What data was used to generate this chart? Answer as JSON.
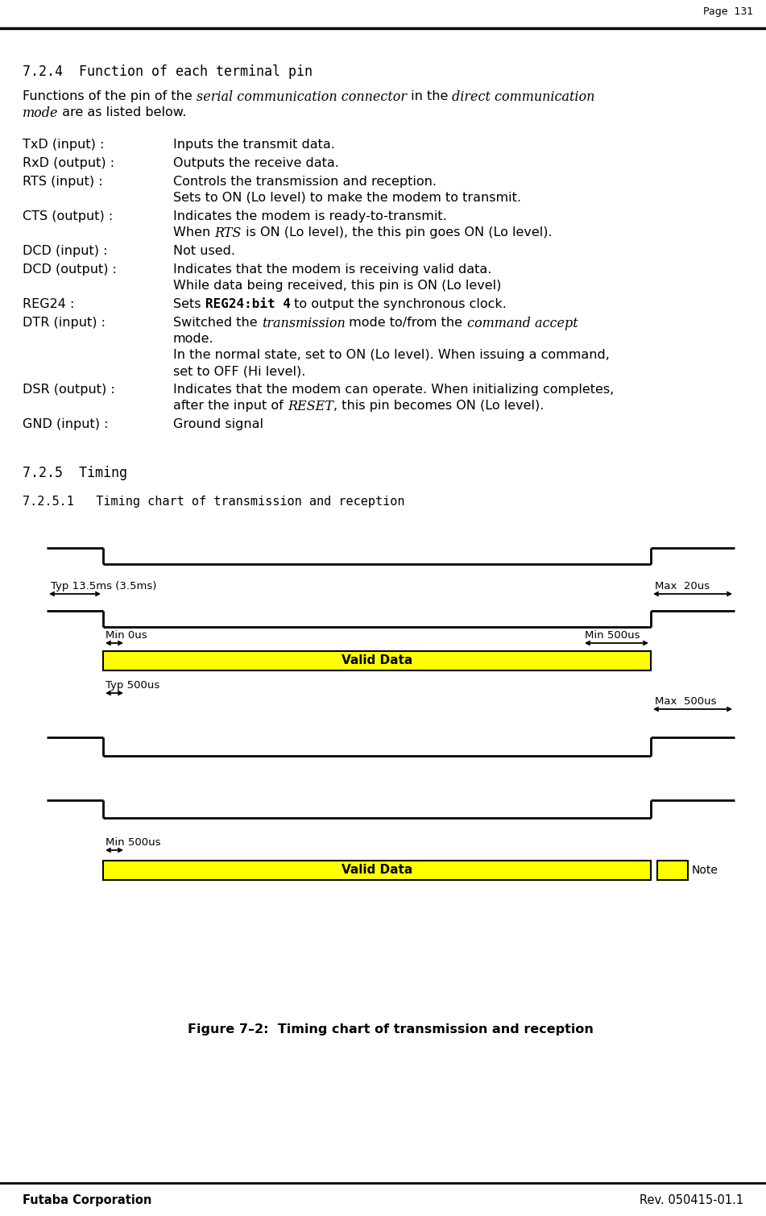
{
  "page_number": "Page  131",
  "section_724": "7.2.4  Function of each terminal pin",
  "intro_line1_parts": [
    {
      "text": "Functions of the pin of the ",
      "style": "normal"
    },
    {
      "text": "serial communication connector",
      "style": "italic"
    },
    {
      "text": " in the ",
      "style": "normal"
    },
    {
      "text": "direct communication",
      "style": "italic"
    }
  ],
  "intro_line2_parts": [
    {
      "text": "mode",
      "style": "italic"
    },
    {
      "text": " are as listed below.",
      "style": "normal"
    }
  ],
  "pin_entries": [
    {
      "label": "TxD (input) :",
      "lines": [
        [
          {
            "text": "Inputs the transmit data.",
            "style": "normal"
          }
        ]
      ]
    },
    {
      "label": "RxD (output) :",
      "lines": [
        [
          {
            "text": "Outputs the receive data.",
            "style": "normal"
          }
        ]
      ]
    },
    {
      "label": "RTS (input) :",
      "lines": [
        [
          {
            "text": "Controls the transmission and reception.",
            "style": "normal"
          }
        ],
        [
          {
            "text": "Sets to ON (Lo level) to make the modem to transmit.",
            "style": "normal"
          }
        ]
      ]
    },
    {
      "label": "CTS (output) :",
      "lines": [
        [
          {
            "text": "Indicates the modem is ready-to-transmit.",
            "style": "normal"
          }
        ],
        [
          {
            "text": "When ",
            "style": "normal"
          },
          {
            "text": "RTS",
            "style": "italic"
          },
          {
            "text": " is ON (Lo level), the this pin goes ON (Lo level).",
            "style": "normal"
          }
        ]
      ]
    },
    {
      "label": "DCD (input) :",
      "lines": [
        [
          {
            "text": "Not used.",
            "style": "normal"
          }
        ]
      ]
    },
    {
      "label": "DCD (output) :",
      "lines": [
        [
          {
            "text": "Indicates that the modem is receiving valid data.",
            "style": "normal"
          }
        ],
        [
          {
            "text": "While data being received, this pin is ON (Lo level)",
            "style": "normal"
          }
        ]
      ]
    },
    {
      "label": "REG24 :",
      "lines": [
        [
          {
            "text": "Sets ",
            "style": "normal"
          },
          {
            "text": "REG24:bit 4",
            "style": "bold_mono"
          },
          {
            "text": " to output the synchronous clock.",
            "style": "normal"
          }
        ]
      ]
    },
    {
      "label": "DTR (input) :",
      "lines": [
        [
          {
            "text": "Switched the ",
            "style": "normal"
          },
          {
            "text": "transmission",
            "style": "italic"
          },
          {
            "text": " mode to/from the ",
            "style": "normal"
          },
          {
            "text": "command accept",
            "style": "italic"
          }
        ],
        [
          {
            "text": "mode.",
            "style": "normal"
          }
        ],
        [
          {
            "text": "In the normal state, set to ON (Lo level). When issuing a command,",
            "style": "normal"
          }
        ],
        [
          {
            "text": "set to OFF (Hi level).",
            "style": "normal"
          }
        ]
      ]
    },
    {
      "label": "DSR (output) :",
      "lines": [
        [
          {
            "text": "Indicates that the modem can operate. When initializing completes,",
            "style": "normal"
          }
        ],
        [
          {
            "text": "after the input of ",
            "style": "normal"
          },
          {
            "text": "RESET",
            "style": "italic"
          },
          {
            "text": ", this pin becomes ON (Lo level).",
            "style": "normal"
          }
        ]
      ]
    },
    {
      "label": "GND (input) :",
      "lines": [
        [
          {
            "text": "Ground signal",
            "style": "normal"
          }
        ]
      ]
    }
  ],
  "section_725": "7.2.5  Timing",
  "section_7251": "7.2.5.1   Timing chart of transmission and reception",
  "figure_caption": "Figure 7–2:  Timing chart of transmission and reception",
  "footer_left": "Futaba Corporation",
  "footer_right": "Rev. 050415-01.1",
  "yellow_color": "#FFFF00",
  "black_color": "#000000",
  "lbl_typ135": "Typ 13.5ms (3.5ms)",
  "lbl_max20": "Max  20us",
  "lbl_min0": "Min 0us",
  "lbl_min500_top": "Min 500us",
  "lbl_valid_top": "Valid Data",
  "lbl_typ500": "Typ 500us",
  "lbl_max500": "Max  500us",
  "lbl_min500_bot": "Min 500us",
  "lbl_valid_bot": "Valid Data",
  "lbl_note": "Note"
}
